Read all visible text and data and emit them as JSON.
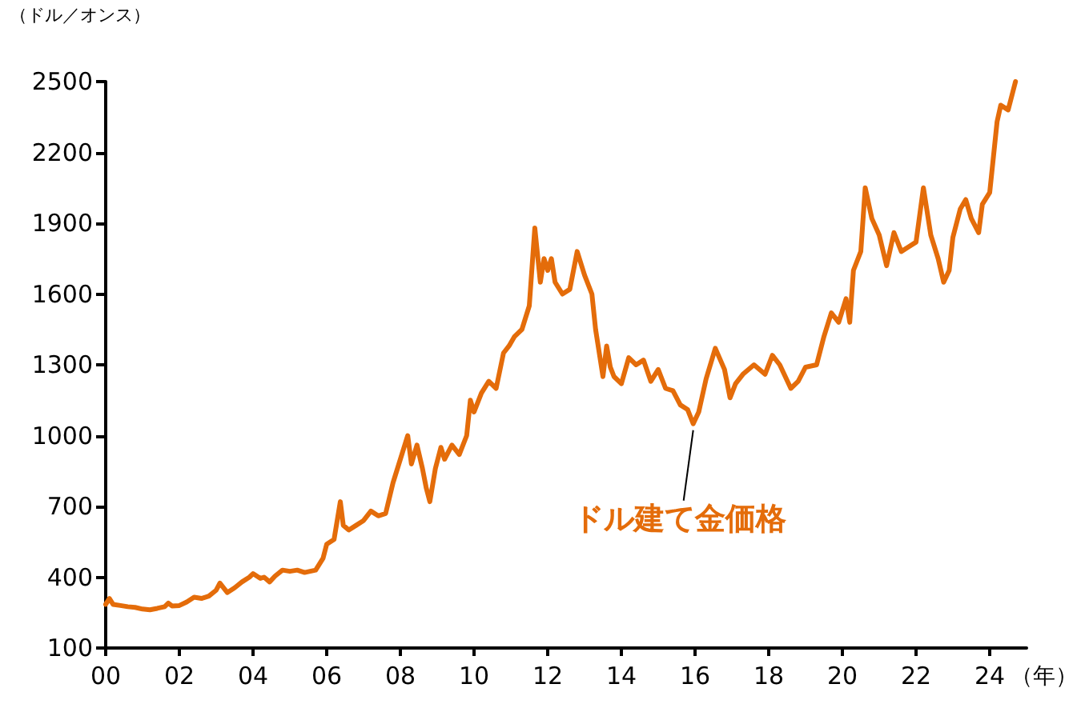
{
  "chart_data": {
    "type": "line",
    "ylabel": "（ドル／オンス）",
    "xlabel": "（年）",
    "xlim": [
      0,
      25
    ],
    "xticks": [
      {
        "value": 0,
        "label": "00"
      },
      {
        "value": 2,
        "label": "02"
      },
      {
        "value": 4,
        "label": "04"
      },
      {
        "value": 6,
        "label": "06"
      },
      {
        "value": 8,
        "label": "08"
      },
      {
        "value": 10,
        "label": "10"
      },
      {
        "value": 12,
        "label": "12"
      },
      {
        "value": 14,
        "label": "14"
      },
      {
        "value": 16,
        "label": "16"
      },
      {
        "value": 18,
        "label": "18"
      },
      {
        "value": 20,
        "label": "20"
      },
      {
        "value": 22,
        "label": "22"
      },
      {
        "value": 24,
        "label": "24"
      }
    ],
    "ylim": [
      100,
      2500
    ],
    "yticks": [
      100,
      400,
      700,
      1000,
      1300,
      1600,
      1900,
      2200,
      2500
    ],
    "grid": false,
    "legend": false,
    "marker": "none",
    "line_style": "solid",
    "series": [
      {
        "name": "ドル建て金価格",
        "color": "#e46c0a",
        "x": [
          0.0,
          0.1,
          0.2,
          0.4,
          0.6,
          0.8,
          1.0,
          1.2,
          1.4,
          1.6,
          1.7,
          1.8,
          2.0,
          2.2,
          2.4,
          2.6,
          2.8,
          3.0,
          3.1,
          3.3,
          3.5,
          3.7,
          3.9,
          4.0,
          4.2,
          4.3,
          4.45,
          4.6,
          4.8,
          5.0,
          5.2,
          5.4,
          5.7,
          5.9,
          6.0,
          6.2,
          6.37,
          6.45,
          6.6,
          6.8,
          7.0,
          7.2,
          7.4,
          7.6,
          7.8,
          8.0,
          8.2,
          8.3,
          8.45,
          8.6,
          8.7,
          8.8,
          8.95,
          9.1,
          9.2,
          9.4,
          9.6,
          9.8,
          9.9,
          10.0,
          10.2,
          10.4,
          10.6,
          10.8,
          10.95,
          11.1,
          11.3,
          11.5,
          11.65,
          11.8,
          11.9,
          12.0,
          12.1,
          12.2,
          12.4,
          12.6,
          12.8,
          13.0,
          13.2,
          13.3,
          13.5,
          13.6,
          13.7,
          13.8,
          14.0,
          14.2,
          14.4,
          14.6,
          14.8,
          15.0,
          15.2,
          15.4,
          15.6,
          15.8,
          15.95,
          16.1,
          16.3,
          16.55,
          16.8,
          16.95,
          17.1,
          17.3,
          17.6,
          17.9,
          18.1,
          18.3,
          18.6,
          18.8,
          19.0,
          19.3,
          19.5,
          19.7,
          19.9,
          20.1,
          20.2,
          20.3,
          20.5,
          20.62,
          20.8,
          21.0,
          21.2,
          21.4,
          21.6,
          21.8,
          22.0,
          22.2,
          22.4,
          22.6,
          22.75,
          22.9,
          23.0,
          23.2,
          23.35,
          23.5,
          23.7,
          23.8,
          24.0,
          24.2,
          24.3,
          24.5,
          24.7
        ],
        "values": [
          285,
          310,
          285,
          280,
          275,
          272,
          265,
          262,
          268,
          275,
          290,
          278,
          280,
          295,
          315,
          310,
          320,
          345,
          375,
          335,
          355,
          380,
          400,
          415,
          395,
          400,
          380,
          405,
          430,
          425,
          430,
          420,
          430,
          480,
          540,
          560,
          720,
          620,
          600,
          620,
          640,
          680,
          660,
          670,
          800,
          900,
          1000,
          880,
          960,
          860,
          780,
          720,
          860,
          950,
          900,
          960,
          920,
          1000,
          1150,
          1100,
          1180,
          1230,
          1200,
          1350,
          1380,
          1420,
          1450,
          1550,
          1880,
          1650,
          1750,
          1700,
          1750,
          1650,
          1600,
          1620,
          1780,
          1680,
          1600,
          1450,
          1250,
          1380,
          1290,
          1250,
          1220,
          1330,
          1300,
          1320,
          1230,
          1280,
          1200,
          1190,
          1130,
          1110,
          1050,
          1100,
          1240,
          1370,
          1280,
          1160,
          1220,
          1260,
          1300,
          1260,
          1340,
          1300,
          1200,
          1230,
          1290,
          1300,
          1420,
          1520,
          1480,
          1580,
          1480,
          1700,
          1780,
          2050,
          1920,
          1850,
          1720,
          1860,
          1780,
          1800,
          1820,
          2050,
          1850,
          1750,
          1650,
          1700,
          1840,
          1960,
          2000,
          1920,
          1860,
          1980,
          2030,
          2330,
          2400,
          2380,
          2500
        ]
      }
    ]
  }
}
